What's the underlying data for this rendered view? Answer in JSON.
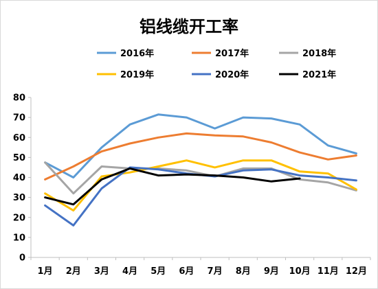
{
  "chart_data": {
    "type": "line",
    "title": "铝线缆开工率",
    "xlabel": "",
    "ylabel": "",
    "ylim": [
      0,
      80
    ],
    "yticks": [
      0,
      10,
      20,
      30,
      40,
      50,
      60,
      70,
      80
    ],
    "grid": false,
    "legend_position": "top",
    "categories": [
      "1月",
      "2月",
      "3月",
      "4月",
      "5月",
      "6月",
      "7月",
      "8月",
      "9月",
      "10月",
      "11月",
      "12月"
    ],
    "series": [
      {
        "name": "2016年",
        "color": "#5B9BD5",
        "values": [
          47.5,
          40,
          55,
          66.5,
          71.5,
          70,
          64.5,
          70,
          69.5,
          66.5,
          56,
          52
        ]
      },
      {
        "name": "2017年",
        "color": "#ED7D31",
        "values": [
          39,
          45.5,
          53,
          57,
          60,
          62,
          61,
          60.5,
          57.5,
          52.5,
          49,
          51
        ]
      },
      {
        "name": "2018年",
        "color": "#A5A5A5",
        "values": [
          47.5,
          32,
          45.5,
          44.5,
          44.5,
          43.5,
          40.5,
          44.5,
          44.5,
          39,
          37.5,
          33.5
        ]
      },
      {
        "name": "2019年",
        "color": "#FFC000",
        "values": [
          32,
          23.5,
          40.5,
          42.5,
          45.5,
          48.5,
          45,
          48.5,
          48.5,
          43,
          42,
          34
        ]
      },
      {
        "name": "2020年",
        "color": "#4472C4",
        "values": [
          26,
          16,
          34.5,
          45,
          44,
          42,
          40.5,
          43.5,
          44,
          41,
          40,
          38.5
        ]
      },
      {
        "name": "2021年",
        "color": "#000000",
        "values": [
          30,
          26.5,
          39,
          44.5,
          41,
          41.5,
          41,
          40,
          38,
          39.5,
          null,
          null
        ]
      }
    ]
  }
}
